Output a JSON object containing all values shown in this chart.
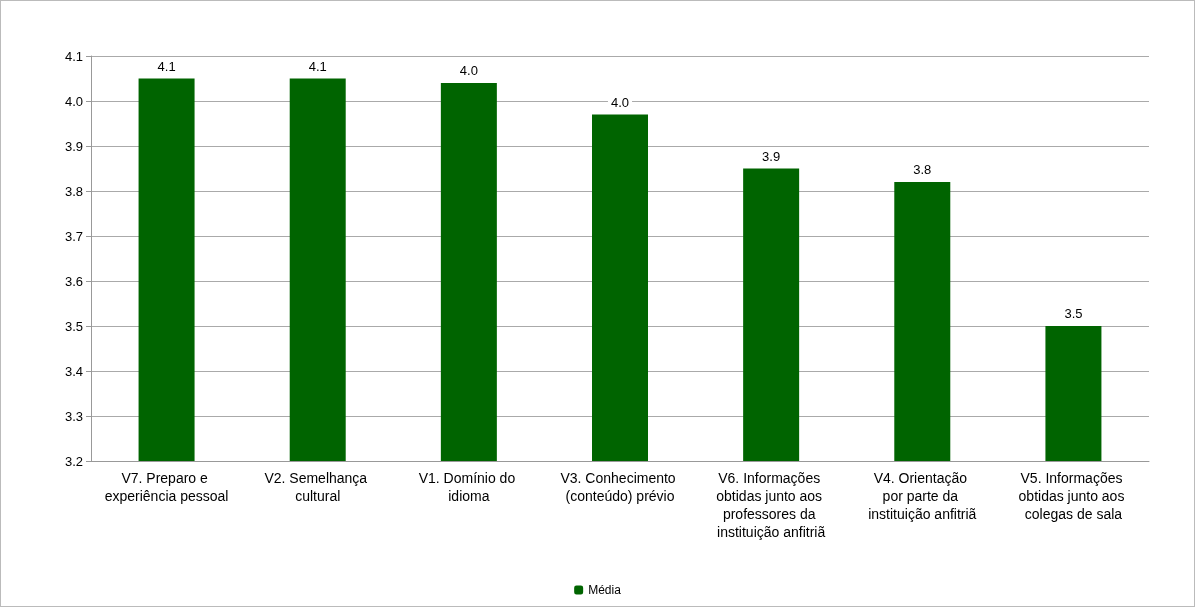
{
  "chart_data": {
    "type": "bar",
    "categories": [
      "V7. Preparo e experiência pessoal",
      "V2. Semelhança cultural",
      "V1. Domínio do idioma",
      "V3. Conhecimento (conteúdo) prévio",
      "V6. Informações obtidas junto aos professores da instituição anfitriã",
      "V4. Orientação por parte da instituição anfitriã",
      "V5. Informações obtidas junto aos colegas de sala"
    ],
    "series": [
      {
        "name": "Média",
        "color": "#006400",
        "values": [
          4.05,
          4.05,
          4.04,
          3.97,
          3.85,
          3.82,
          3.5
        ],
        "value_labels": [
          "4.1",
          "4.1",
          "4.0",
          "4.0",
          "3.9",
          "3.8",
          "3.5"
        ]
      }
    ],
    "ylim": [
      3.2,
      4.1
    ],
    "yticks": [
      3.2,
      3.3,
      3.4,
      3.5,
      3.6,
      3.7,
      3.8,
      3.9,
      {
        "value": 4,
        "label": "4.0"
      },
      4.1
    ],
    "grid": "y",
    "legend": "bottom"
  }
}
